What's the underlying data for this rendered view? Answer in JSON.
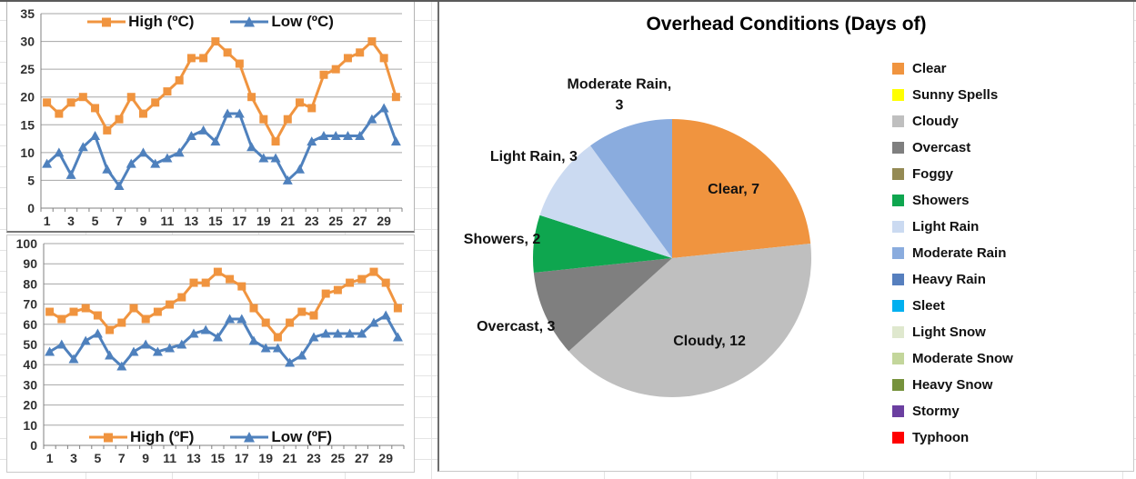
{
  "chart_data": [
    {
      "id": "celsius",
      "type": "line",
      "title": "",
      "x": [
        1,
        2,
        3,
        4,
        5,
        6,
        7,
        8,
        9,
        10,
        11,
        12,
        13,
        14,
        15,
        16,
        17,
        18,
        19,
        20,
        21,
        22,
        23,
        24,
        25,
        26,
        27,
        28,
        29,
        30
      ],
      "x_tick_labels": [
        "1",
        "3",
        "5",
        "7",
        "9",
        "11",
        "13",
        "15",
        "17",
        "19",
        "21",
        "23",
        "25",
        "27",
        "29"
      ],
      "y_ticks": [
        0,
        5,
        10,
        15,
        20,
        25,
        30,
        35
      ],
      "ylim": [
        0,
        35
      ],
      "ystep": 5,
      "grid": true,
      "legend_position": "top-inside",
      "series": [
        {
          "name": "High (ºC)",
          "marker": "square",
          "color": "#F0943F",
          "values": [
            19,
            17,
            19,
            20,
            18,
            14,
            16,
            20,
            17,
            19,
            21,
            23,
            27,
            27,
            30,
            28,
            26,
            20,
            16,
            12,
            16,
            19,
            18,
            24,
            25,
            27,
            28,
            30,
            27,
            20
          ]
        },
        {
          "name": "Low (ºC)",
          "marker": "triangle",
          "color": "#4F81BD",
          "values": [
            8,
            10,
            6,
            11,
            13,
            7,
            4,
            8,
            10,
            8,
            9,
            10,
            13,
            14,
            12,
            17,
            17,
            11,
            9,
            9,
            5,
            7,
            12,
            13,
            13,
            13,
            13,
            16,
            18,
            12
          ]
        }
      ]
    },
    {
      "id": "fahrenheit",
      "type": "line",
      "title": "",
      "x": [
        1,
        2,
        3,
        4,
        5,
        6,
        7,
        8,
        9,
        10,
        11,
        12,
        13,
        14,
        15,
        16,
        17,
        18,
        19,
        20,
        21,
        22,
        23,
        24,
        25,
        26,
        27,
        28,
        29,
        30
      ],
      "x_tick_labels": [
        "1",
        "3",
        "5",
        "7",
        "9",
        "11",
        "13",
        "15",
        "17",
        "19",
        "21",
        "23",
        "25",
        "27",
        "29"
      ],
      "y_ticks": [
        0,
        10,
        20,
        30,
        40,
        50,
        60,
        70,
        80,
        90,
        100
      ],
      "ylim": [
        0,
        100
      ],
      "ystep": 10,
      "grid": true,
      "legend_position": "bottom-inside",
      "series": [
        {
          "name": "High (ºF)",
          "marker": "square",
          "color": "#F0943F",
          "values": [
            66.2,
            62.6,
            66.2,
            68,
            64.4,
            57.2,
            60.8,
            68,
            62.6,
            66.2,
            69.8,
            73.4,
            80.6,
            80.6,
            86,
            82.4,
            78.8,
            68,
            60.8,
            53.6,
            60.8,
            66.2,
            64.4,
            75.2,
            77,
            80.6,
            82.4,
            86,
            80.6,
            68
          ]
        },
        {
          "name": "Low (ºF)",
          "marker": "triangle",
          "color": "#4F81BD",
          "values": [
            46.4,
            50,
            42.8,
            51.8,
            55.4,
            44.6,
            39.2,
            46.4,
            50,
            46.4,
            48.2,
            50,
            55.4,
            57.2,
            53.6,
            62.6,
            62.6,
            51.8,
            48.2,
            48.2,
            41,
            44.6,
            53.6,
            55.4,
            55.4,
            55.4,
            55.4,
            60.8,
            64.4,
            53.6
          ]
        }
      ]
    },
    {
      "id": "overhead-conditions",
      "type": "pie",
      "title": "Overhead Conditions (Days of)",
      "start_angle_deg": 0,
      "direction": "clockwise",
      "total": 30,
      "data_label_format": "label, value",
      "shown_data_labels": [
        "Clear, 7",
        "Cloudy, 12",
        "Overcast, 3",
        "Showers, 2",
        "Light Rain, 3",
        "Moderate Rain, 3"
      ],
      "slices": [
        {
          "label": "Clear",
          "value": 7,
          "color": "#F0943F"
        },
        {
          "label": "Cloudy",
          "value": 12,
          "color": "#BFBFBF"
        },
        {
          "label": "Overcast",
          "value": 3,
          "color": "#7F7F7F"
        },
        {
          "label": "Showers",
          "value": 2,
          "color": "#0EA64F"
        },
        {
          "label": "Light Rain",
          "value": 3,
          "color": "#CBDAF1"
        },
        {
          "label": "Moderate Rain",
          "value": 3,
          "color": "#8AACDE"
        }
      ],
      "legend_position": "right",
      "legend": [
        {
          "label": "Clear",
          "color": "#F0943F"
        },
        {
          "label": "Sunny Spells",
          "color": "#FFFF00"
        },
        {
          "label": "Cloudy",
          "color": "#BFBFBF"
        },
        {
          "label": "Overcast",
          "color": "#7F7F7F"
        },
        {
          "label": "Foggy",
          "color": "#948A54"
        },
        {
          "label": "Showers",
          "color": "#0EA64F"
        },
        {
          "label": "Light Rain",
          "color": "#CBDAF1"
        },
        {
          "label": "Moderate Rain",
          "color": "#8AACDE"
        },
        {
          "label": "Heavy Rain",
          "color": "#567FBE"
        },
        {
          "label": "Sleet",
          "color": "#00B0F0"
        },
        {
          "label": "Light Snow",
          "color": "#DFE8CE"
        },
        {
          "label": "Moderate Snow",
          "color": "#C3D69B"
        },
        {
          "label": "Heavy Snow",
          "color": "#76923C"
        },
        {
          "label": "Stormy",
          "color": "#6B3FA0"
        },
        {
          "label": "Typhoon",
          "color": "#FF0000"
        }
      ]
    }
  ],
  "style_colors": {
    "high_series": "#F0943F",
    "low_series": "#4F81BD",
    "gridline": "#A6A6A6",
    "axis": "#808080"
  }
}
